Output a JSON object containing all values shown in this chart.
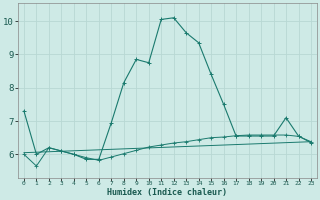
{
  "xlabel": "Humidex (Indice chaleur)",
  "background_color": "#ceeae6",
  "grid_color": "#b8d8d4",
  "line_color": "#1a7a6e",
  "xlim": [
    -0.5,
    23.5
  ],
  "ylim": [
    5.3,
    10.55
  ],
  "yticks": [
    6,
    7,
    8,
    9,
    10
  ],
  "xticks": [
    0,
    1,
    2,
    3,
    4,
    5,
    6,
    7,
    8,
    9,
    10,
    11,
    12,
    13,
    14,
    15,
    16,
    17,
    18,
    19,
    20,
    21,
    22,
    23
  ],
  "line1_x": [
    0,
    1,
    2,
    3,
    4,
    5,
    6,
    7,
    8,
    9,
    10,
    11,
    12,
    13,
    14,
    15,
    16,
    17,
    18,
    19,
    20,
    21,
    22,
    23
  ],
  "line1_y": [
    7.3,
    6.0,
    6.2,
    6.1,
    6.0,
    5.85,
    5.85,
    6.95,
    8.15,
    8.85,
    8.75,
    10.05,
    10.1,
    9.65,
    9.35,
    8.4,
    7.5,
    6.55,
    6.55,
    6.55,
    6.55,
    7.1,
    6.55,
    6.35
  ],
  "line2_x": [
    0,
    1,
    2,
    3,
    4,
    5,
    6,
    7,
    8,
    9,
    10,
    11,
    12,
    13,
    14,
    15,
    16,
    17,
    18,
    19,
    20,
    21,
    22,
    23
  ],
  "line2_y": [
    6.0,
    5.65,
    6.2,
    6.1,
    6.0,
    5.9,
    5.82,
    5.92,
    6.02,
    6.12,
    6.22,
    6.28,
    6.34,
    6.38,
    6.44,
    6.5,
    6.52,
    6.56,
    6.58,
    6.58,
    6.58,
    6.58,
    6.54,
    6.38
  ],
  "line3_x": [
    0,
    23
  ],
  "line3_y": [
    6.05,
    6.38
  ]
}
